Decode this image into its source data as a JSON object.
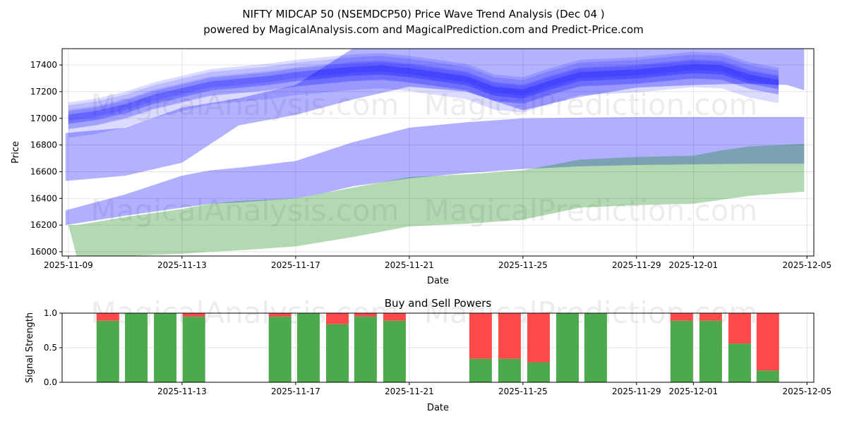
{
  "title_line1": "NIFTY MIDCAP 50 (NSEMDCP50) Price Wave Trend Analysis (Dec 04 )",
  "title_line2": "powered by MagicalAnalysis.com and MagicalPrediction.com and Predict-Price.com",
  "watermarks": [
    "MagicalAnalysis.com",
    "MagicalPrediction.com"
  ],
  "chart_data": [
    {
      "type": "area",
      "title": "",
      "xlabel": "Date",
      "ylabel": "Price",
      "x_origin": "2025-11-09",
      "xlim_days": [
        -0.22,
        26.24
      ],
      "ylim": [
        15968,
        17522
      ],
      "grid": true,
      "x_ticks": [
        {
          "day": 0,
          "label": "2025-11-09"
        },
        {
          "day": 4,
          "label": "2025-11-13"
        },
        {
          "day": 8,
          "label": "2025-11-17"
        },
        {
          "day": 12,
          "label": "2025-11-21"
        },
        {
          "day": 16,
          "label": "2025-11-25"
        },
        {
          "day": 20,
          "label": "2025-11-29"
        },
        {
          "day": 22,
          "label": "2025-12-01"
        },
        {
          "day": 26,
          "label": "2025-12-05"
        }
      ],
      "y_ticks": [
        16000,
        16200,
        16400,
        16600,
        16800,
        17000,
        17200,
        17400
      ],
      "trend_cluster": {
        "color": "#0000ff",
        "days": [
          0,
          1,
          2,
          3,
          4,
          5,
          6,
          7,
          8,
          9,
          10,
          11,
          12,
          13,
          14,
          15,
          16,
          17,
          18,
          19,
          20,
          21,
          22,
          23,
          24,
          25
        ],
        "center": [
          17000,
          17030,
          17080,
          17150,
          17200,
          17250,
          17270,
          17290,
          17320,
          17340,
          17360,
          17370,
          17350,
          17320,
          17290,
          17210,
          17190,
          17260,
          17320,
          17330,
          17340,
          17360,
          17380,
          17370,
          17300,
          17260
        ],
        "half_widths": [
          130,
          95,
          70,
          50,
          35,
          22
        ]
      },
      "bands": [
        {
          "name": "wide-upper-band",
          "color": "#0000ff",
          "opacity": 0.3,
          "days": [
            -0.1,
            2,
            4,
            6,
            8,
            10,
            12,
            14,
            16,
            18,
            20,
            22,
            24,
            25.3,
            25.9
          ],
          "upper": [
            16890,
            16930,
            17080,
            17150,
            17250,
            17522,
            17522,
            17522,
            17522,
            17522,
            17522,
            17522,
            17522,
            17522,
            17522
          ],
          "lower": [
            16530,
            16570,
            16667,
            16947,
            17026,
            17140,
            17237,
            17200,
            17060,
            17160,
            17230,
            17250,
            17260,
            17250,
            17210
          ]
        },
        {
          "name": "mid-blue-band",
          "color": "#0000ff",
          "opacity": 0.31,
          "days": [
            -0.1,
            2,
            4,
            5,
            6,
            8,
            9,
            10,
            12,
            14,
            16,
            18,
            20,
            22,
            24,
            25.9
          ],
          "upper": [
            16310,
            16430,
            16570,
            16610,
            16630,
            16680,
            16750,
            16820,
            16930,
            16970,
            17000,
            17005,
            17010,
            17010,
            17010,
            17010
          ],
          "lower": [
            16200,
            16270,
            16330,
            16360,
            16370,
            16400,
            16440,
            16490,
            16550,
            16590,
            16620,
            16640,
            16650,
            16655,
            16660,
            16660
          ]
        },
        {
          "name": "green-band",
          "color": "#008000",
          "opacity": 0.3,
          "days": [
            0,
            0.3,
            2,
            4,
            5,
            6,
            8,
            10,
            12,
            14,
            16,
            18,
            20,
            22,
            23,
            24,
            25.9
          ],
          "upper": [
            16200,
            16200,
            16260,
            16320,
            16360,
            16380,
            16400,
            16480,
            16560,
            16580,
            16610,
            16690,
            16710,
            16720,
            16760,
            16790,
            16810
          ],
          "lower": [
            16200,
            15960,
            15968,
            15985,
            16000,
            16010,
            16040,
            16110,
            16190,
            16210,
            16240,
            16330,
            16350,
            16360,
            16390,
            16420,
            16450
          ]
        }
      ]
    },
    {
      "type": "bar",
      "title": "Buy and Sell Powers",
      "xlabel": "Date",
      "ylabel": "Signal Strength",
      "ylim": [
        0,
        1
      ],
      "y_ticks": [
        {
          "v": 0,
          "label": "0.0"
        },
        {
          "v": 0.5,
          "label": "0.5"
        },
        {
          "v": 1,
          "label": "1.0"
        }
      ],
      "x_ticks": [
        {
          "day": 4,
          "label": "2025-11-13"
        },
        {
          "day": 8,
          "label": "2025-11-17"
        },
        {
          "day": 12,
          "label": "2025-11-21"
        },
        {
          "day": 16,
          "label": "2025-11-25"
        },
        {
          "day": 20,
          "label": "2025-11-29"
        },
        {
          "day": 22,
          "label": "2025-12-01"
        },
        {
          "day": 26,
          "label": "2025-12-05"
        }
      ],
      "buy_color": "#4caa4c",
      "sell_color": "#ff4a4a",
      "bar_days": [
        1.39,
        2.39,
        3.41,
        4.42,
        7.45,
        8.45,
        9.47,
        10.46,
        11.48,
        14.51,
        15.53,
        16.55,
        17.57,
        18.56,
        21.59,
        22.61,
        23.63,
        24.62
      ],
      "buy": [
        0.89,
        1.0,
        1.0,
        0.95,
        0.95,
        1.0,
        0.84,
        0.95,
        0.89,
        0.34,
        0.34,
        0.29,
        1.0,
        1.0,
        0.89,
        0.89,
        0.56,
        0.17
      ],
      "sell": [
        0.11,
        0.0,
        0.0,
        0.05,
        0.05,
        0.0,
        0.16,
        0.05,
        0.11,
        0.66,
        0.66,
        0.71,
        0.0,
        0.0,
        0.11,
        0.11,
        0.44,
        0.83
      ]
    }
  ]
}
